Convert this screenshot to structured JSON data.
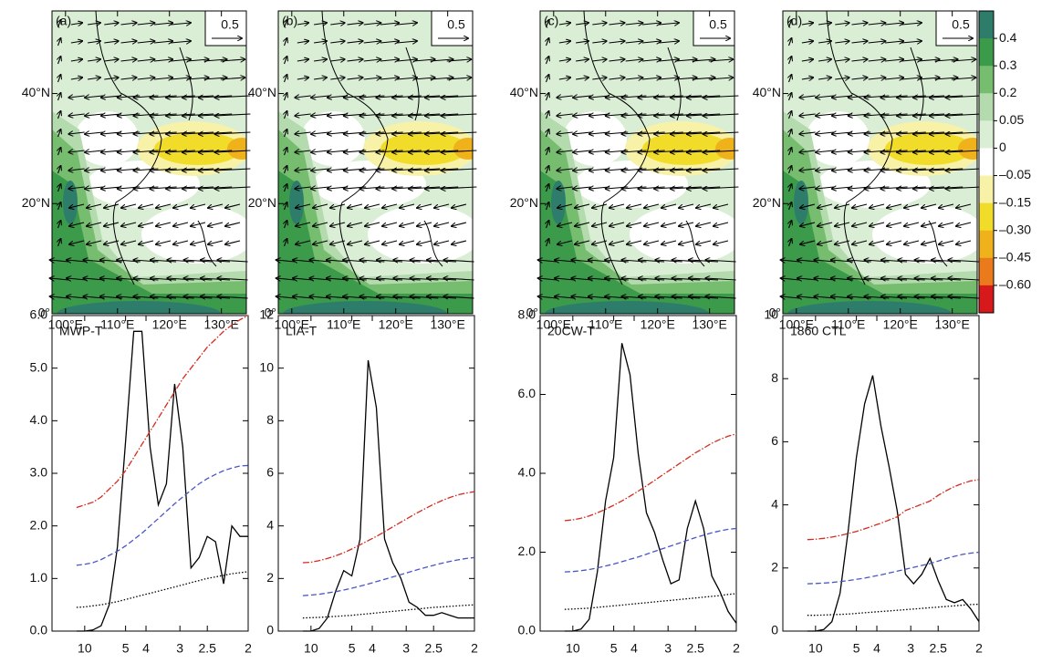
{
  "maps": {
    "panels": [
      {
        "label": "(a)",
        "ref_label": "0.5"
      },
      {
        "label": "(b)",
        "ref_label": "0.5"
      },
      {
        "label": "(c)",
        "ref_label": "0.5"
      },
      {
        "label": "(d)",
        "ref_label": "0.5"
      }
    ],
    "lonlim": [
      97.4,
      134.8
    ],
    "latlim": [
      0,
      55
    ],
    "xticks": [
      {
        "value": 100,
        "label": "100°E"
      },
      {
        "value": 110,
        "label": "110°E"
      },
      {
        "value": 120,
        "label": "120°E"
      },
      {
        "value": 130,
        "label": "130°E"
      }
    ],
    "yticks": [
      {
        "value": 0,
        "label": "0°"
      },
      {
        "value": 20,
        "label": "20°N"
      },
      {
        "value": 40,
        "label": "40°N"
      }
    ],
    "colorbar": {
      "ticks": [
        0.4,
        0.3,
        0.2,
        0.05,
        0,
        {
          "value": -0.05,
          "label": "–0.05"
        },
        {
          "value": -0.15,
          "label": "–0.15"
        },
        {
          "value": -0.3,
          "label": "–0.30"
        },
        {
          "value": -0.45,
          "label": "–0.45"
        },
        {
          "value": -0.6,
          "label": "–0.60"
        }
      ],
      "colors": [
        "#2e7d6b",
        "#3c9b4a",
        "#76bd6f",
        "#b3dbad",
        "#d9eed5",
        "#ffffff",
        "#f8f2a8",
        "#f2dc2a",
        "#f0b21b",
        "#ea7a1c",
        "#d7191c"
      ]
    }
  },
  "chart_data": [
    {
      "type": "line",
      "title": "MWP-T",
      "x": [
        0.08,
        0.1,
        0.12,
        0.14,
        0.16,
        0.18,
        0.2,
        0.22,
        0.24,
        0.26,
        0.28,
        0.3,
        0.32,
        0.34,
        0.36,
        0.38,
        0.4,
        0.42,
        0.44,
        0.46,
        0.48,
        0.5
      ],
      "series": [
        {
          "color": "#000000",
          "dash": "solid",
          "values": [
            0,
            0,
            0.02,
            0.1,
            0.5,
            1.6,
            3.6,
            5.7,
            5.7,
            3.5,
            2.4,
            2.8,
            4.7,
            3.5,
            1.2,
            1.4,
            1.8,
            1.7,
            0.9,
            2.0,
            1.8,
            1.8
          ]
        },
        {
          "color": "#d62a1e",
          "dash": "dashdot",
          "values": [
            2.35,
            2.4,
            2.45,
            2.55,
            2.7,
            2.85,
            3.05,
            3.3,
            3.55,
            3.8,
            4.05,
            4.3,
            4.55,
            4.8,
            5.0,
            5.2,
            5.4,
            5.55,
            5.7,
            5.82,
            5.92,
            6.0
          ]
        },
        {
          "color": "#4a55c8",
          "dash": "dashed",
          "values": [
            1.25,
            1.27,
            1.3,
            1.36,
            1.44,
            1.52,
            1.62,
            1.74,
            1.86,
            2.0,
            2.14,
            2.28,
            2.42,
            2.55,
            2.68,
            2.8,
            2.9,
            2.98,
            3.05,
            3.1,
            3.14,
            3.15
          ]
        },
        {
          "color": "#000000",
          "dash": "dotted",
          "values": [
            0.45,
            0.46,
            0.48,
            0.5,
            0.53,
            0.56,
            0.6,
            0.64,
            0.68,
            0.72,
            0.76,
            0.8,
            0.84,
            0.88,
            0.92,
            0.96,
            1.0,
            1.03,
            1.06,
            1.09,
            1.11,
            1.13
          ]
        }
      ],
      "xlim": [
        0.02,
        0.5
      ],
      "ylim": [
        0,
        6
      ],
      "xticks": [
        {
          "value": 0.1,
          "label": "10"
        },
        {
          "value": 0.2,
          "label": "5"
        },
        {
          "value": 0.25,
          "label": "4"
        },
        {
          "value": 0.333,
          "label": "3"
        },
        {
          "value": 0.4,
          "label": "2.5"
        },
        {
          "value": 0.5,
          "label": "2"
        }
      ],
      "yticks": [
        {
          "value": 0,
          "label": "0.0"
        },
        {
          "value": 1,
          "label": "1.0"
        },
        {
          "value": 2,
          "label": "2.0"
        },
        {
          "value": 3,
          "label": "3.0"
        },
        {
          "value": 4,
          "label": "4.0"
        },
        {
          "value": 5,
          "label": "5.0"
        },
        {
          "value": 6,
          "label": "6.0"
        }
      ]
    },
    {
      "type": "line",
      "title": "LIA-T",
      "x": [
        0.08,
        0.1,
        0.12,
        0.14,
        0.16,
        0.18,
        0.2,
        0.22,
        0.24,
        0.26,
        0.28,
        0.3,
        0.32,
        0.34,
        0.36,
        0.38,
        0.4,
        0.42,
        0.44,
        0.46,
        0.48,
        0.5
      ],
      "series": [
        {
          "color": "#000000",
          "dash": "solid",
          "values": [
            0,
            0,
            0.1,
            0.5,
            1.5,
            2.3,
            2.1,
            3.5,
            10.3,
            8.5,
            3.5,
            2.6,
            2.0,
            1.1,
            0.9,
            0.6,
            0.6,
            0.7,
            0.6,
            0.5,
            0.5,
            0.5
          ]
        },
        {
          "color": "#d62a1e",
          "dash": "dashdot",
          "values": [
            2.6,
            2.62,
            2.68,
            2.76,
            2.86,
            2.98,
            3.12,
            3.28,
            3.44,
            3.6,
            3.78,
            3.96,
            4.14,
            4.32,
            4.5,
            4.66,
            4.82,
            4.96,
            5.08,
            5.18,
            5.25,
            5.3
          ]
        },
        {
          "color": "#4a55c8",
          "dash": "dashed",
          "values": [
            1.35,
            1.37,
            1.4,
            1.45,
            1.5,
            1.56,
            1.63,
            1.71,
            1.79,
            1.88,
            1.97,
            2.06,
            2.15,
            2.24,
            2.33,
            2.42,
            2.5,
            2.58,
            2.65,
            2.71,
            2.76,
            2.8
          ]
        },
        {
          "color": "#000000",
          "dash": "dotted",
          "values": [
            0.5,
            0.51,
            0.52,
            0.54,
            0.56,
            0.58,
            0.6,
            0.63,
            0.66,
            0.69,
            0.72,
            0.75,
            0.78,
            0.81,
            0.84,
            0.87,
            0.9,
            0.92,
            0.94,
            0.96,
            0.98,
            1.0
          ]
        }
      ],
      "xlim": [
        0.02,
        0.5
      ],
      "ylim": [
        0,
        12
      ],
      "xticks": [
        {
          "value": 0.1,
          "label": "10"
        },
        {
          "value": 0.2,
          "label": "5"
        },
        {
          "value": 0.25,
          "label": "4"
        },
        {
          "value": 0.333,
          "label": "3"
        },
        {
          "value": 0.4,
          "label": "2.5"
        },
        {
          "value": 0.5,
          "label": "2"
        }
      ],
      "yticks": [
        0,
        2,
        4,
        6,
        8,
        10,
        12
      ]
    },
    {
      "type": "line",
      "title": "20CW-T",
      "x": [
        0.08,
        0.1,
        0.12,
        0.14,
        0.16,
        0.18,
        0.2,
        0.22,
        0.24,
        0.26,
        0.28,
        0.3,
        0.32,
        0.34,
        0.36,
        0.38,
        0.4,
        0.42,
        0.44,
        0.46,
        0.48,
        0.5
      ],
      "series": [
        {
          "color": "#000000",
          "dash": "solid",
          "values": [
            0,
            0,
            0.05,
            0.3,
            1.5,
            3.3,
            4.4,
            7.3,
            6.5,
            4.5,
            3.0,
            2.5,
            1.8,
            1.2,
            1.3,
            2.6,
            3.3,
            2.6,
            1.4,
            1.0,
            0.5,
            0.2
          ]
        },
        {
          "color": "#d62a1e",
          "dash": "dashdot",
          "values": [
            2.8,
            2.82,
            2.86,
            2.92,
            3.0,
            3.09,
            3.19,
            3.3,
            3.42,
            3.55,
            3.68,
            3.82,
            3.96,
            4.1,
            4.24,
            4.38,
            4.52,
            4.64,
            4.76,
            4.86,
            4.94,
            5.0
          ]
        },
        {
          "color": "#4a55c8",
          "dash": "dashed",
          "values": [
            1.5,
            1.51,
            1.53,
            1.56,
            1.6,
            1.65,
            1.7,
            1.76,
            1.82,
            1.88,
            1.95,
            2.02,
            2.09,
            2.16,
            2.23,
            2.3,
            2.37,
            2.43,
            2.49,
            2.54,
            2.58,
            2.6
          ]
        },
        {
          "color": "#000000",
          "dash": "dotted",
          "values": [
            0.55,
            0.56,
            0.57,
            0.58,
            0.6,
            0.62,
            0.64,
            0.66,
            0.68,
            0.7,
            0.72,
            0.74,
            0.76,
            0.78,
            0.8,
            0.82,
            0.84,
            0.86,
            0.88,
            0.9,
            0.93,
            0.95
          ]
        }
      ],
      "xlim": [
        0.02,
        0.5
      ],
      "ylim": [
        0,
        8
      ],
      "xticks": [
        {
          "value": 0.1,
          "label": "10"
        },
        {
          "value": 0.2,
          "label": "5"
        },
        {
          "value": 0.25,
          "label": "4"
        },
        {
          "value": 0.333,
          "label": "3"
        },
        {
          "value": 0.4,
          "label": "2.5"
        },
        {
          "value": 0.5,
          "label": "2"
        }
      ],
      "yticks": [
        {
          "value": 0,
          "label": "0.0"
        },
        {
          "value": 2,
          "label": "2.0"
        },
        {
          "value": 4,
          "label": "4.0"
        },
        {
          "value": 6,
          "label": "6.0"
        },
        {
          "value": 8,
          "label": "8.0"
        }
      ]
    },
    {
      "type": "line",
      "title": "1860 CTL",
      "x": [
        0.08,
        0.1,
        0.12,
        0.14,
        0.16,
        0.18,
        0.2,
        0.22,
        0.24,
        0.26,
        0.28,
        0.3,
        0.32,
        0.34,
        0.36,
        0.38,
        0.4,
        0.42,
        0.44,
        0.46,
        0.48,
        0.5
      ],
      "series": [
        {
          "color": "#000000",
          "dash": "solid",
          "values": [
            0,
            0,
            0.05,
            0.3,
            1.2,
            3.2,
            5.5,
            7.2,
            8.1,
            6.5,
            5.2,
            3.8,
            1.8,
            1.5,
            1.8,
            2.3,
            1.6,
            1.0,
            0.9,
            1.0,
            0.7,
            0.3
          ]
        },
        {
          "color": "#d62a1e",
          "dash": "dashdot",
          "values": [
            2.9,
            2.91,
            2.94,
            2.98,
            3.03,
            3.09,
            3.16,
            3.24,
            3.33,
            3.42,
            3.52,
            3.62,
            3.82,
            3.92,
            4.02,
            4.12,
            4.3,
            4.45,
            4.58,
            4.68,
            4.76,
            4.8
          ]
        },
        {
          "color": "#4a55c8",
          "dash": "dashed",
          "values": [
            1.5,
            1.51,
            1.52,
            1.54,
            1.57,
            1.6,
            1.64,
            1.68,
            1.73,
            1.78,
            1.84,
            1.9,
            1.96,
            2.02,
            2.08,
            2.14,
            2.22,
            2.3,
            2.37,
            2.43,
            2.47,
            2.5
          ]
        },
        {
          "color": "#000000",
          "dash": "dotted",
          "values": [
            0.5,
            0.5,
            0.51,
            0.52,
            0.53,
            0.54,
            0.56,
            0.58,
            0.6,
            0.62,
            0.64,
            0.66,
            0.68,
            0.7,
            0.72,
            0.74,
            0.76,
            0.78,
            0.8,
            0.82,
            0.84,
            0.85
          ]
        }
      ],
      "xlim": [
        0.02,
        0.5
      ],
      "ylim": [
        0,
        10
      ],
      "xticks": [
        {
          "value": 0.1,
          "label": "10"
        },
        {
          "value": 0.2,
          "label": "5"
        },
        {
          "value": 0.25,
          "label": "4"
        },
        {
          "value": 0.333,
          "label": "3"
        },
        {
          "value": 0.4,
          "label": "2.5"
        },
        {
          "value": 0.5,
          "label": "2"
        }
      ],
      "yticks": [
        0,
        2,
        4,
        6,
        8,
        10
      ]
    }
  ]
}
